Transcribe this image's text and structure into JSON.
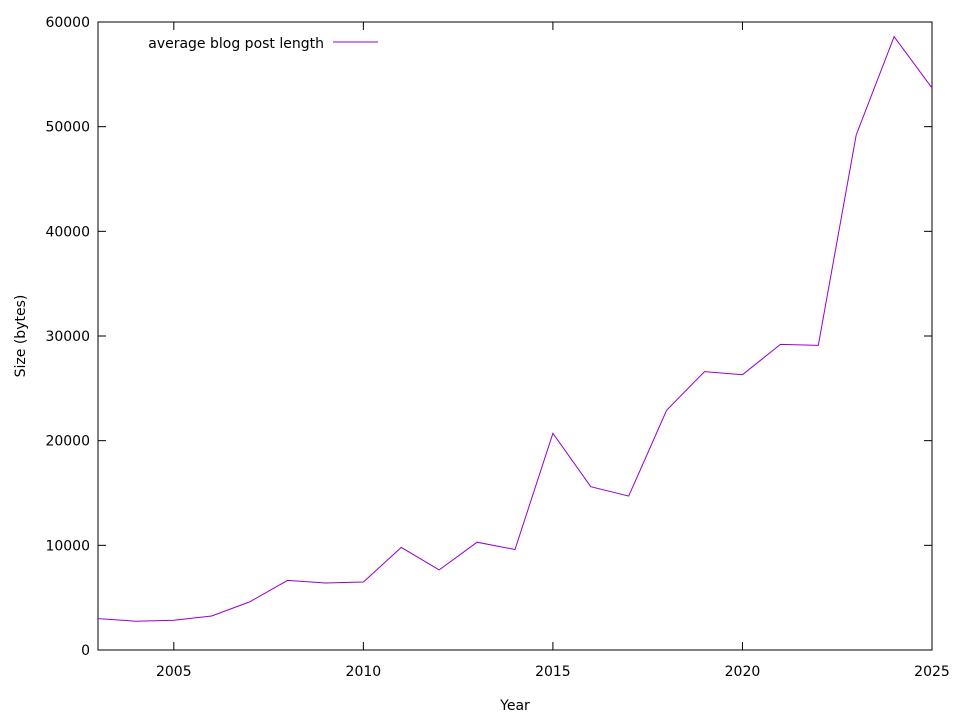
{
  "chart_data": {
    "type": "line",
    "title": "",
    "xlabel": "Year",
    "ylabel": "Size (bytes)",
    "xlim": [
      2003,
      2025
    ],
    "ylim": [
      0,
      60000
    ],
    "xticks": [
      2005,
      2010,
      2015,
      2020,
      2025
    ],
    "yticks": [
      0,
      10000,
      20000,
      30000,
      40000,
      50000,
      60000
    ],
    "grid": false,
    "legend_position": "top-left",
    "series": [
      {
        "name": "average blog post length",
        "color": "#9400d3",
        "x": [
          2003,
          2004,
          2005,
          2006,
          2007,
          2008,
          2009,
          2010,
          2011,
          2012,
          2013,
          2014,
          2015,
          2016,
          2017,
          2018,
          2019,
          2020,
          2021,
          2022,
          2023,
          2024,
          2025
        ],
        "y": [
          3000,
          2750,
          2850,
          3250,
          4600,
          6650,
          6400,
          6500,
          9800,
          7650,
          10300,
          9600,
          20700,
          15600,
          14700,
          22900,
          26600,
          26300,
          29200,
          29100,
          49200,
          58600,
          53700
        ]
      }
    ]
  }
}
